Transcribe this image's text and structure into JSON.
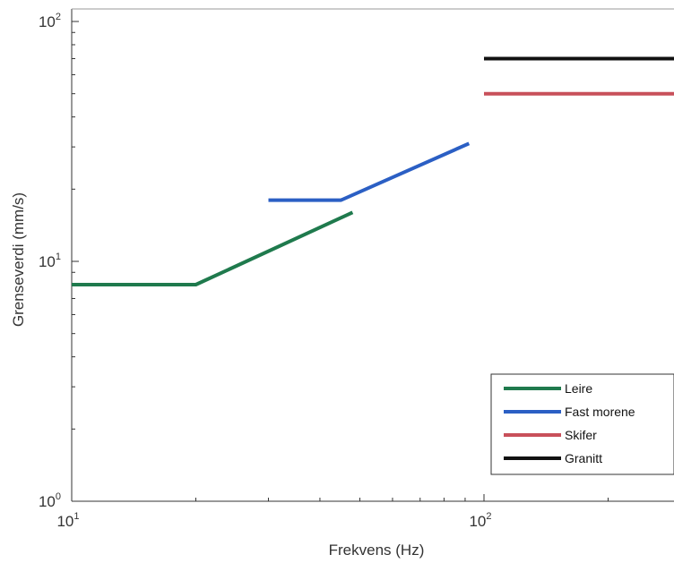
{
  "chart_data": {
    "type": "line",
    "x_scale": "log",
    "y_scale": "log",
    "xlabel": "Frekvens (Hz)",
    "ylabel": "Grenseverdi (mm/s)",
    "xlim": [
      10,
      300
    ],
    "ylim": [
      1,
      100
    ],
    "x_ticks": [
      {
        "value": 10,
        "base": "10",
        "exp": "1"
      },
      {
        "value": 100,
        "base": "10",
        "exp": "2"
      }
    ],
    "y_ticks": [
      {
        "value": 1,
        "base": "10",
        "exp": "0"
      },
      {
        "value": 10,
        "base": "10",
        "exp": "1"
      },
      {
        "value": 100,
        "base": "10",
        "exp": "2"
      }
    ],
    "grid": false,
    "legend_position": "bottom-right",
    "series": [
      {
        "name": "Leire",
        "color": "#1f7a4d",
        "points": [
          [
            10,
            8
          ],
          [
            20,
            8
          ],
          [
            48,
            16
          ]
        ]
      },
      {
        "name": "Fast morene",
        "color": "#2b5fc4",
        "points": [
          [
            30,
            18
          ],
          [
            45,
            18
          ],
          [
            92,
            31
          ]
        ]
      },
      {
        "name": "Skifer",
        "color": "#c8505a",
        "points": [
          [
            100,
            50
          ],
          [
            300,
            50
          ]
        ]
      },
      {
        "name": "Granitt",
        "color": "#111111",
        "points": [
          [
            100,
            70
          ],
          [
            300,
            70
          ]
        ]
      }
    ]
  }
}
